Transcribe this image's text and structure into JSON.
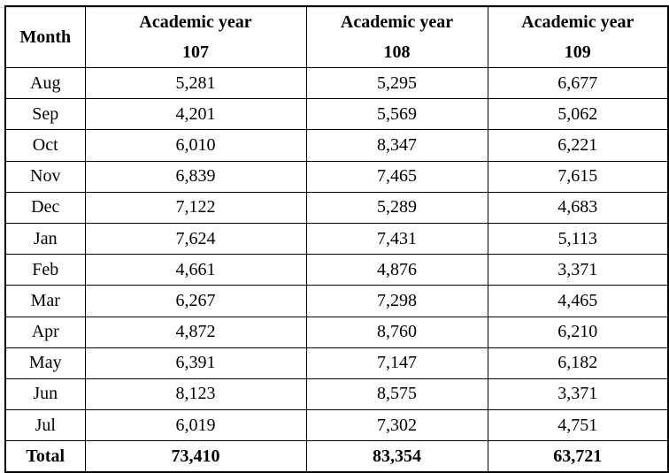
{
  "table": {
    "header": {
      "month": "Month",
      "years": [
        {
          "label": "Academic year",
          "number": "107"
        },
        {
          "label": "Academic year",
          "number": "108"
        },
        {
          "label": "Academic year",
          "number": "109"
        }
      ]
    },
    "rows": [
      {
        "month": "Aug",
        "values": [
          "5,281",
          "5,295",
          "6,677"
        ]
      },
      {
        "month": "Sep",
        "values": [
          "4,201",
          "5,569",
          "5,062"
        ]
      },
      {
        "month": "Oct",
        "values": [
          "6,010",
          "8,347",
          "6,221"
        ]
      },
      {
        "month": "Nov",
        "values": [
          "6,839",
          "7,465",
          "7,615"
        ]
      },
      {
        "month": "Dec",
        "values": [
          "7,122",
          "5,289",
          "4,683"
        ]
      },
      {
        "month": "Jan",
        "values": [
          "7,624",
          "7,431",
          "5,113"
        ]
      },
      {
        "month": "Feb",
        "values": [
          "4,661",
          "4,876",
          "3,371"
        ]
      },
      {
        "month": "Mar",
        "values": [
          "6,267",
          "7,298",
          "4,465"
        ]
      },
      {
        "month": "Apr",
        "values": [
          "4,872",
          "8,760",
          "6,210"
        ]
      },
      {
        "month": "May",
        "values": [
          "6,391",
          "7,147",
          "6,182"
        ]
      },
      {
        "month": "Jun",
        "values": [
          "8,123",
          "8,575",
          "3,371"
        ]
      },
      {
        "month": "Jul",
        "values": [
          "6,019",
          "7,302",
          "4,751"
        ]
      }
    ],
    "total": {
      "label": "Total",
      "values": [
        "73,410",
        "83,354",
        "63,721"
      ]
    }
  }
}
